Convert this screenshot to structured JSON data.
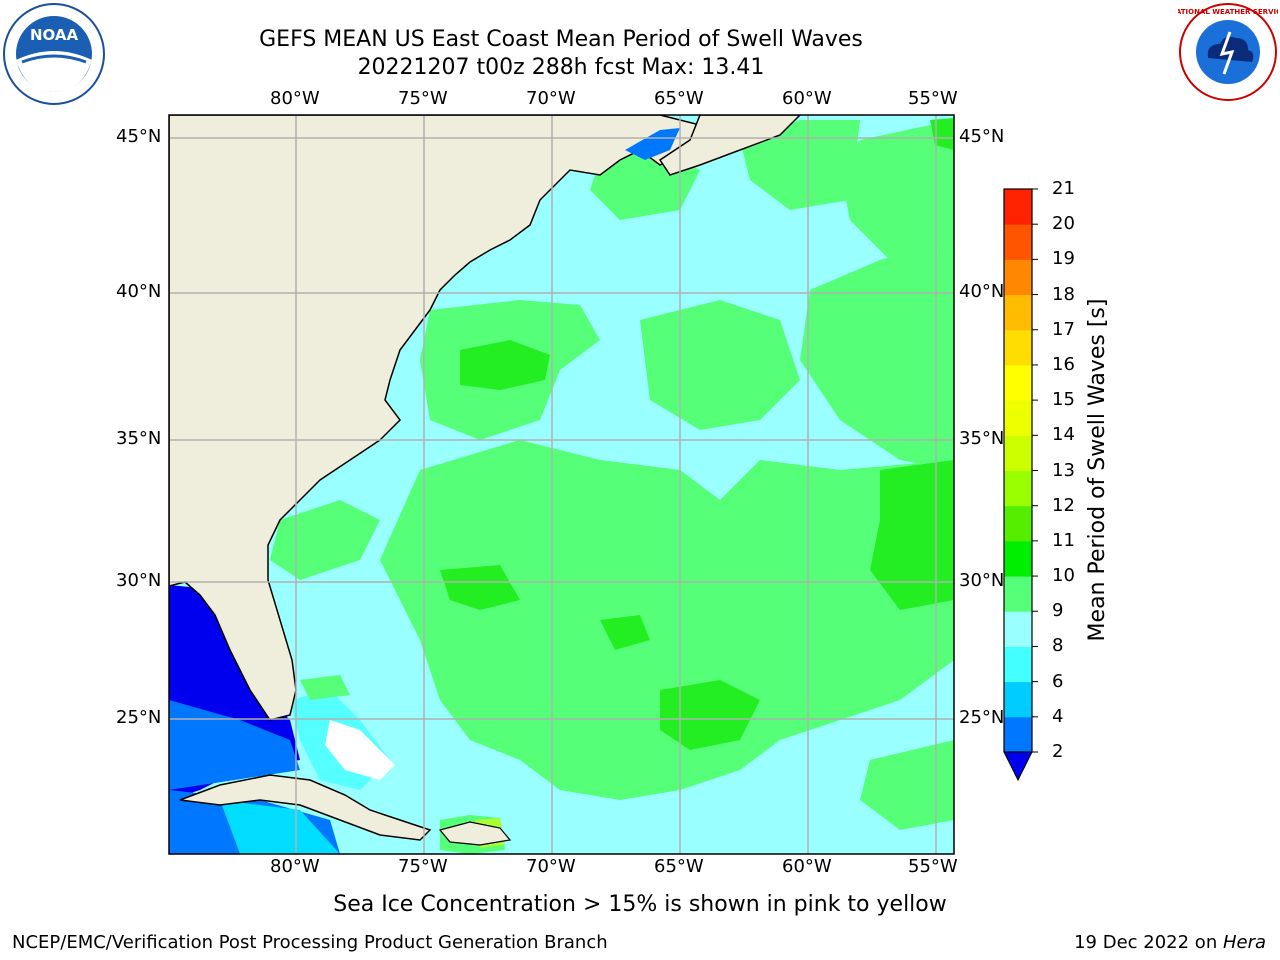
{
  "header": {
    "title_line1": "GEFS MEAN US East Coast Mean Period of Swell Waves",
    "title_line2": "20221207 t00z 288h fcst   Max: 13.41"
  },
  "map": {
    "lon_labels": [
      "80°W",
      "75°W",
      "70°W",
      "65°W",
      "60°W",
      "55°W"
    ],
    "lat_labels": [
      "45°N",
      "40°N",
      "35°N",
      "30°N",
      "25°N"
    ],
    "colors": {
      "land": "#efeedc",
      "ocean_base": "#99ffff",
      "band_9_10": "#55ff77",
      "band_10_11": "#22ee22",
      "band_8_9": "#99ffff",
      "band_6_8": "#55ffff",
      "band_4_6": "#00ddff",
      "band_2_4": "#0077ff",
      "band_lt2": "#0000ee",
      "grid": "#b0b0b0"
    }
  },
  "colorbar": {
    "label": "Mean Period of Swell Waves [s]",
    "ticks": [
      "2",
      "4",
      "6",
      "8",
      "9",
      "10",
      "11",
      "12",
      "13",
      "14",
      "15",
      "16",
      "17",
      "18",
      "19",
      "20",
      "21"
    ],
    "colors": [
      "#0077ff",
      "#00ccff",
      "#44ffff",
      "#99ffff",
      "#55ff77",
      "#00ee00",
      "#55ee00",
      "#99ff00",
      "#ccff00",
      "#eeff00",
      "#ffff00",
      "#ffdd00",
      "#ffbb00",
      "#ff8800",
      "#ff5500",
      "#ff2200"
    ],
    "min_color": "#0000ee"
  },
  "footer": {
    "sea_ice_note": "Sea Ice Concentration > 15% is shown in pink to yellow",
    "branch": "NCEP/EMC/Verification Post Processing Product Generation Branch",
    "date_prefix": "19 Dec 2022 on ",
    "date_host": "Hera"
  },
  "logos": {
    "noaa_text": "NOAA",
    "nws_text": "NATIONAL WEATHER SERVICE"
  }
}
